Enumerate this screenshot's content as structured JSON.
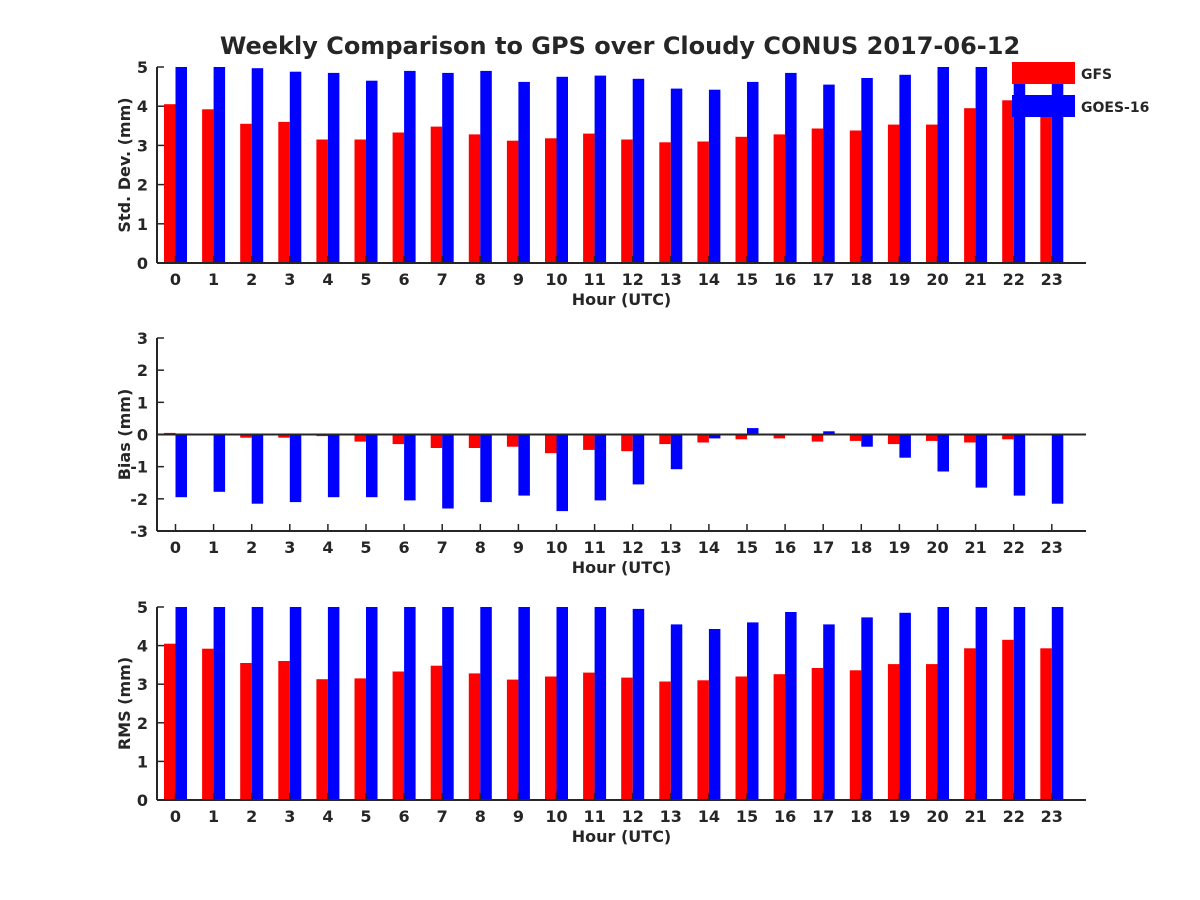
{
  "title": "Weekly Comparison to GPS over Cloudy CONUS 2017-06-12",
  "legend": [
    {
      "name": "GFS",
      "color": "#ff0000"
    },
    {
      "name": "GOES-16",
      "color": "#0000ff"
    }
  ],
  "chart_data": [
    {
      "type": "bar",
      "xlabel": "Hour (UTC)",
      "ylabel": "Std. Dev. (mm)",
      "ylim": [
        0,
        5
      ],
      "yticks": [
        "0",
        "1",
        "2",
        "3",
        "4",
        "5"
      ],
      "categories": [
        "0",
        "1",
        "2",
        "3",
        "4",
        "5",
        "6",
        "7",
        "8",
        "9",
        "10",
        "11",
        "12",
        "13",
        "14",
        "15",
        "16",
        "17",
        "18",
        "19",
        "20",
        "21",
        "22",
        "23"
      ],
      "legend": "top-right",
      "series": [
        {
          "name": "GFS",
          "color": "#ff0000",
          "values": [
            4.05,
            3.92,
            3.55,
            3.6,
            3.15,
            3.15,
            3.33,
            3.48,
            3.28,
            3.12,
            3.18,
            3.3,
            3.15,
            3.08,
            3.1,
            3.22,
            3.28,
            3.43,
            3.38,
            3.53,
            3.53,
            3.95,
            4.15,
            3.95
          ]
        },
        {
          "name": "GOES-16",
          "color": "#0000ff",
          "values": [
            5.0,
            5.0,
            4.97,
            4.88,
            4.85,
            4.65,
            4.9,
            4.85,
            4.9,
            4.62,
            4.75,
            4.78,
            4.7,
            4.45,
            4.42,
            4.62,
            4.85,
            4.55,
            4.72,
            4.8,
            5.0,
            5.0,
            5.0,
            5.0
          ]
        }
      ]
    },
    {
      "type": "bar",
      "xlabel": "Hour (UTC)",
      "ylabel": "Bias (mm)",
      "ylim": [
        -3,
        3
      ],
      "yticks": [
        "-3",
        "-2",
        "-1",
        "0",
        "1",
        "2",
        "3"
      ],
      "categories": [
        "0",
        "1",
        "2",
        "3",
        "4",
        "5",
        "6",
        "7",
        "8",
        "9",
        "10",
        "11",
        "12",
        "13",
        "14",
        "15",
        "16",
        "17",
        "18",
        "19",
        "20",
        "21",
        "22",
        "23"
      ],
      "series": [
        {
          "name": "GFS",
          "color": "#ff0000",
          "values": [
            0.05,
            0.0,
            -0.1,
            -0.1,
            -0.05,
            -0.22,
            -0.3,
            -0.42,
            -0.42,
            -0.38,
            -0.58,
            -0.48,
            -0.52,
            -0.3,
            -0.25,
            -0.15,
            -0.12,
            -0.22,
            -0.2,
            -0.3,
            -0.2,
            -0.25,
            -0.15,
            0.02
          ]
        },
        {
          "name": "GOES-16",
          "color": "#0000ff",
          "values": [
            -1.95,
            -1.78,
            -2.15,
            -2.1,
            -1.95,
            -1.95,
            -2.05,
            -2.3,
            -2.1,
            -1.9,
            -2.38,
            -2.05,
            -1.55,
            -1.08,
            -0.12,
            0.2,
            0.0,
            0.1,
            -0.38,
            -0.72,
            -1.15,
            -1.65,
            -1.9,
            -2.15
          ]
        }
      ]
    },
    {
      "type": "bar",
      "xlabel": "Hour (UTC)",
      "ylabel": "RMS (mm)",
      "ylim": [
        0,
        5
      ],
      "yticks": [
        "0",
        "1",
        "2",
        "3",
        "4",
        "5"
      ],
      "categories": [
        "0",
        "1",
        "2",
        "3",
        "4",
        "5",
        "6",
        "7",
        "8",
        "9",
        "10",
        "11",
        "12",
        "13",
        "14",
        "15",
        "16",
        "17",
        "18",
        "19",
        "20",
        "21",
        "22",
        "23"
      ],
      "series": [
        {
          "name": "GFS",
          "color": "#ff0000",
          "values": [
            4.05,
            3.92,
            3.55,
            3.6,
            3.13,
            3.15,
            3.33,
            3.48,
            3.28,
            3.12,
            3.2,
            3.3,
            3.17,
            3.07,
            3.1,
            3.2,
            3.26,
            3.42,
            3.36,
            3.52,
            3.52,
            3.93,
            4.15,
            3.93
          ]
        },
        {
          "name": "GOES-16",
          "color": "#0000ff",
          "values": [
            5.0,
            5.0,
            5.0,
            5.0,
            5.0,
            5.0,
            5.0,
            5.0,
            5.0,
            5.0,
            5.0,
            5.0,
            4.95,
            4.55,
            4.43,
            4.6,
            4.87,
            4.55,
            4.73,
            4.85,
            5.0,
            5.0,
            5.0,
            5.0
          ]
        }
      ]
    }
  ]
}
